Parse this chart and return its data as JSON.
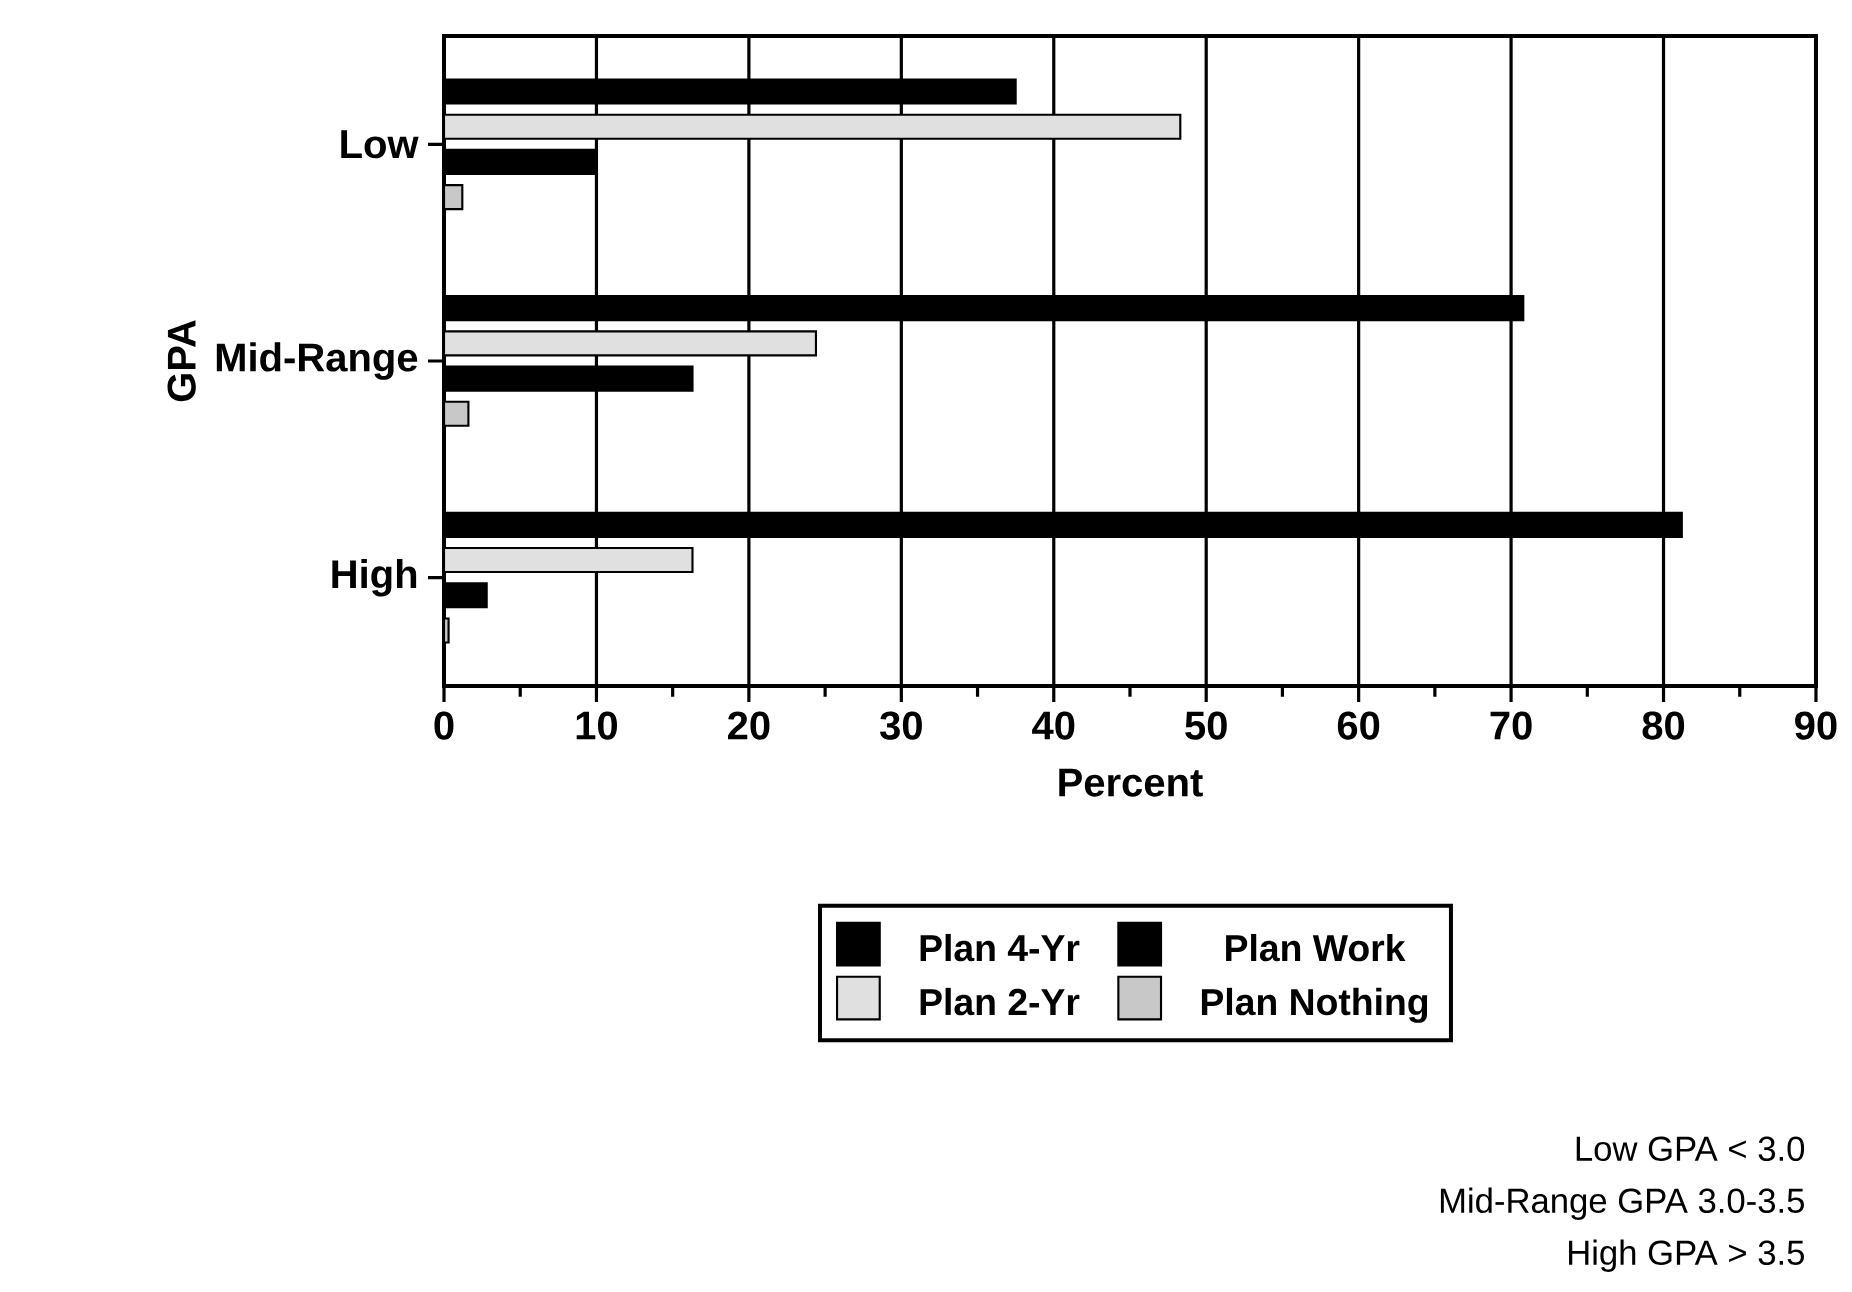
{
  "chart_data": {
    "type": "bar",
    "orientation": "horizontal",
    "xlabel": "Percent",
    "ylabel": "GPA",
    "categories": [
      "Low",
      "Mid-Range",
      "High"
    ],
    "series": [
      {
        "name": "Plan 4-Yr",
        "color": "#000000",
        "values": [
          37.5,
          70.8,
          81.2
        ]
      },
      {
        "name": "Plan 2-Yr",
        "color": "#e0e0e0",
        "values": [
          48.3,
          24.4,
          16.3
        ]
      },
      {
        "name": "Plan Work",
        "color": "#000000",
        "values": [
          9.9,
          16.3,
          2.8
        ]
      },
      {
        "name": "Plan Nothing",
        "color": "#c8c8c8",
        "values": [
          1.2,
          1.6,
          0.3
        ]
      }
    ],
    "xlim": [
      0,
      90
    ],
    "xticks": [
      0,
      10,
      20,
      30,
      40,
      50,
      60,
      70,
      80,
      90
    ],
    "grid": "x",
    "legend": "bottom",
    "annotations": [
      "Low GPA < 3.0",
      "Mid-Range GPA 3.0-3.5",
      "High GPA > 3.5"
    ]
  }
}
